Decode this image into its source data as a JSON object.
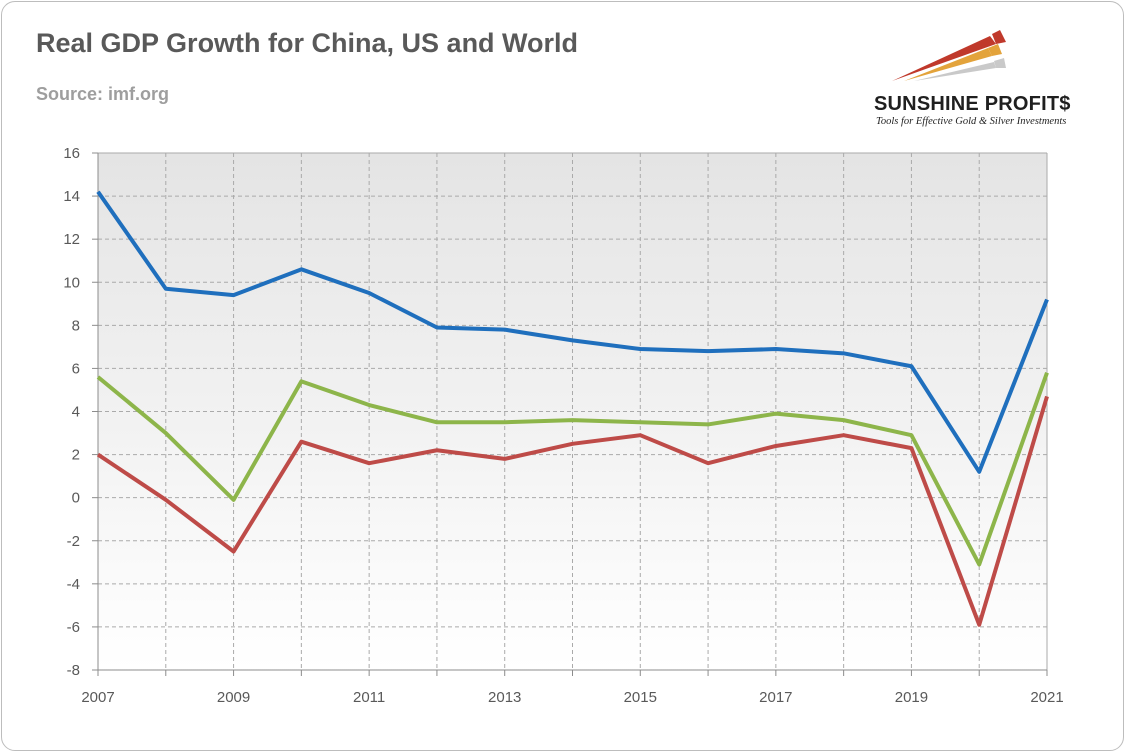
{
  "header": {
    "title": "Real GDP Growth for China, US and World",
    "source": "Source: imf.org"
  },
  "logo": {
    "name": "SUNSHINE PROFIT$",
    "tagline": "Tools for Effective Gold & Silver Investments"
  },
  "colors": {
    "china": "#1f6fbd",
    "world": "#8db54a",
    "us": "#be4b48",
    "grid": "#aaaaaa",
    "axis": "#8c8c8c"
  },
  "chart_data": {
    "type": "line",
    "x": [
      2007,
      2008,
      2009,
      2010,
      2011,
      2012,
      2013,
      2014,
      2015,
      2016,
      2017,
      2018,
      2019,
      2020,
      2021
    ],
    "x_tick_labels": [
      "2007",
      "2009",
      "2011",
      "2013",
      "2015",
      "2017",
      "2019",
      "2021"
    ],
    "y_tick_labels": [
      "16",
      "14",
      "12",
      "10",
      "8",
      "6",
      "4",
      "2",
      "0",
      "-2",
      "-4",
      "-6",
      "-8"
    ],
    "ylim": [
      -8,
      16
    ],
    "xlim": [
      2007,
      2021
    ],
    "grid": true,
    "series": [
      {
        "key": "china",
        "values": [
          14.2,
          9.7,
          9.4,
          10.6,
          9.5,
          7.9,
          7.8,
          7.3,
          6.9,
          6.8,
          6.9,
          6.7,
          6.1,
          1.2,
          9.2
        ]
      },
      {
        "key": "world",
        "values": [
          5.6,
          3.0,
          -0.1,
          5.4,
          4.3,
          3.5,
          3.5,
          3.6,
          3.5,
          3.4,
          3.9,
          3.6,
          2.9,
          -3.1,
          5.8
        ]
      },
      {
        "key": "us",
        "values": [
          2.0,
          -0.1,
          -2.5,
          2.6,
          1.6,
          2.2,
          1.8,
          2.5,
          2.9,
          1.6,
          2.4,
          2.9,
          2.3,
          -5.9,
          4.7
        ]
      }
    ]
  }
}
